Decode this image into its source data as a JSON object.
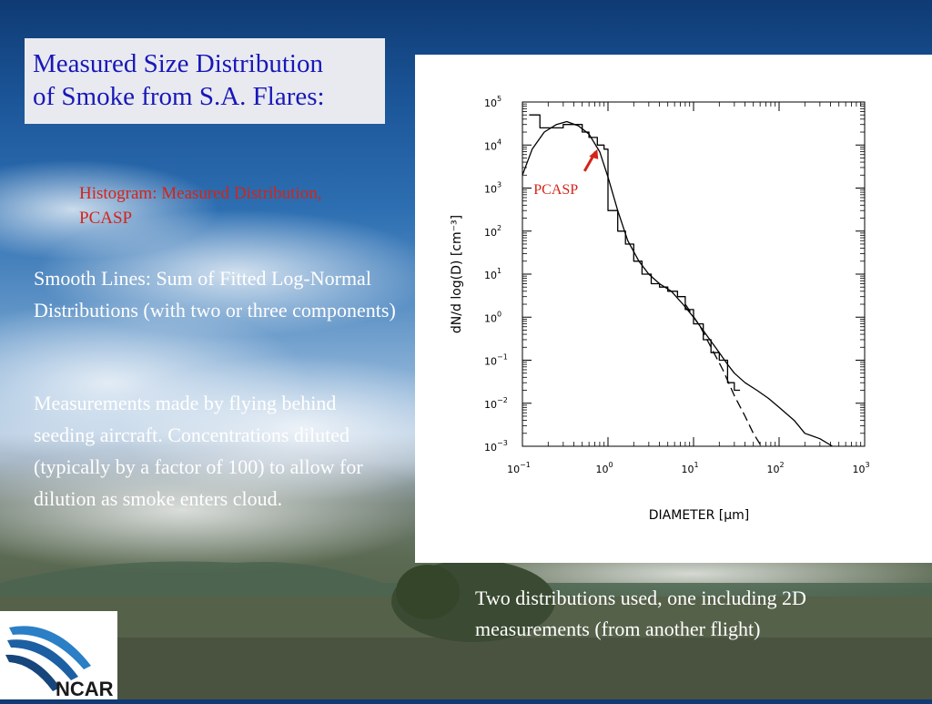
{
  "slide": {
    "title_line1": "Measured Size Distribution",
    "title_line2": "of Smoke from S.A. Flares:",
    "histogram_note_line1": "Histogram: Measured Distribution,",
    "histogram_note_line2": "PCASP",
    "smooth_lines": "Smooth Lines: Sum of Fitted Log-Normal Distributions (with two or three components)",
    "measurements": "Measurements made by flying behind seeding aircraft. Concentrations diluted (typically by a factor of 100) to allow for dilution as smoke enters cloud.",
    "bottom_note": "Two distributions used, one including 2D measurements (from another flight)",
    "logo_text": "NCAR"
  },
  "chart_data": {
    "type": "line",
    "x_scale": "log",
    "y_scale": "log",
    "xlim": [
      0.1,
      1000
    ],
    "ylim": [
      0.001,
      100000
    ],
    "xlabel": "DIAMETER [μm]",
    "ylabel": "dN/d log(D) [cm⁻³]",
    "x_ticks": [
      {
        "base": "10",
        "exp": "−1"
      },
      {
        "base": "10",
        "exp": "0"
      },
      {
        "base": "10",
        "exp": "1"
      },
      {
        "base": "10",
        "exp": "2"
      },
      {
        "base": "10",
        "exp": "3"
      }
    ],
    "y_ticks": [
      {
        "base": "10",
        "exp": "−3"
      },
      {
        "base": "10",
        "exp": "−2"
      },
      {
        "base": "10",
        "exp": "−1"
      },
      {
        "base": "10",
        "exp": "0"
      },
      {
        "base": "10",
        "exp": "1"
      },
      {
        "base": "10",
        "exp": "2"
      },
      {
        "base": "10",
        "exp": "3"
      },
      {
        "base": "10",
        "exp": "4"
      },
      {
        "base": "10",
        "exp": "5"
      }
    ],
    "annotation": {
      "text": "PCASP",
      "x": 0.75,
      "y": 8000,
      "color": "#d42418"
    },
    "series": [
      {
        "style": "step",
        "x": [
          0.12,
          0.16,
          0.22,
          0.3,
          0.4,
          0.5,
          0.6,
          0.75,
          0.9,
          1.0,
          1.3,
          1.6,
          2.0,
          2.5,
          3.2,
          4.0,
          5.0,
          6.5,
          8.0,
          10,
          13,
          16,
          20,
          25,
          30,
          35
        ],
        "y": [
          50000,
          25000,
          25000,
          30000,
          30000,
          20000,
          15000,
          10000,
          8000,
          300,
          100,
          50,
          20,
          10,
          6,
          5,
          4,
          3,
          1.5,
          0.7,
          0.3,
          0.15,
          0.1,
          0.03,
          0.02,
          0.05
        ]
      },
      {
        "style": "solid",
        "x": [
          0.1,
          0.13,
          0.18,
          0.25,
          0.33,
          0.45,
          0.6,
          0.8,
          1.0,
          1.3,
          1.7,
          2.3,
          3.0,
          4.0,
          5.5,
          7.5,
          10,
          14,
          20,
          25,
          30,
          40,
          55,
          75,
          100,
          150,
          200,
          300,
          420
        ],
        "y": [
          2000,
          8000,
          20000,
          30000,
          35000,
          28000,
          18000,
          7000,
          1800,
          300,
          60,
          20,
          10,
          6,
          4,
          2,
          1,
          0.4,
          0.15,
          0.08,
          0.05,
          0.03,
          0.02,
          0.013,
          0.008,
          0.004,
          0.002,
          0.0015,
          0.001
        ]
      },
      {
        "style": "dashed",
        "x": [
          8,
          12,
          16,
          22,
          30,
          40,
          50,
          62
        ],
        "y": [
          2,
          0.6,
          0.2,
          0.06,
          0.015,
          0.005,
          0.002,
          0.001
        ]
      }
    ]
  }
}
